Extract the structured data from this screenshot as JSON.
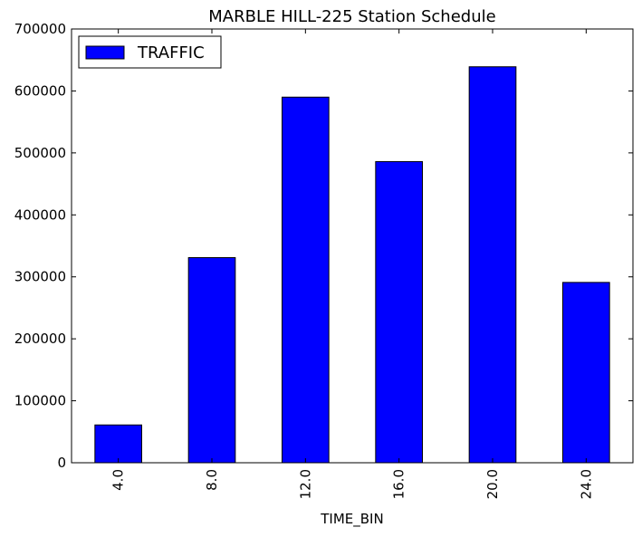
{
  "chart_data": {
    "type": "bar",
    "title": "MARBLE HILL-225 Station Schedule",
    "xlabel": "TIME_BIN",
    "ylabel": "",
    "categories": [
      "4.0",
      "8.0",
      "12.0",
      "16.0",
      "20.0",
      "24.0"
    ],
    "series": [
      {
        "name": "TRAFFIC",
        "values": [
          61000,
          331000,
          590000,
          486000,
          639000,
          291000
        ],
        "color": "#0000ff"
      }
    ],
    "ylim": [
      0,
      700000
    ],
    "yticks": [
      0,
      100000,
      200000,
      300000,
      400000,
      500000,
      600000,
      700000
    ],
    "ytick_labels": [
      "0",
      "100000",
      "200000",
      "300000",
      "400000",
      "500000",
      "600000",
      "700000"
    ],
    "grid": false,
    "legend": "top-left",
    "xtick_rotation": "vertical"
  }
}
